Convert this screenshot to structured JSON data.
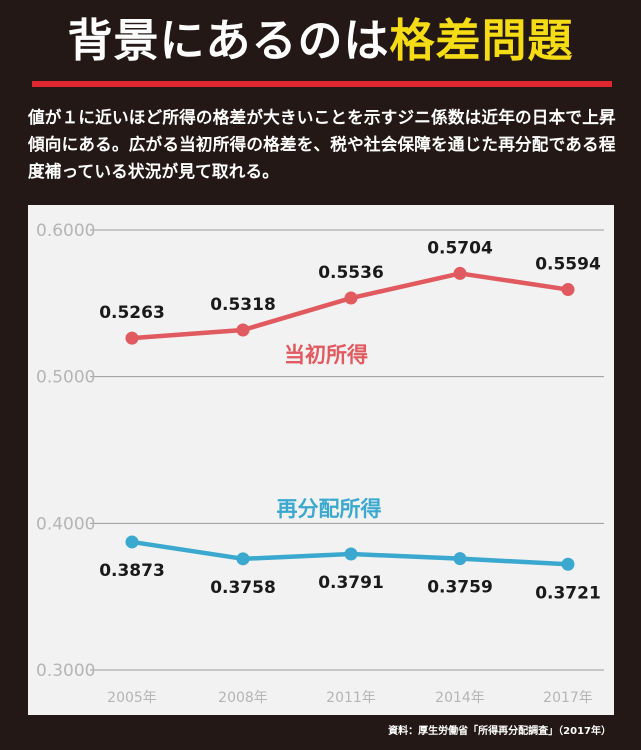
{
  "header": {
    "title_main": "背景にあるのは",
    "title_highlight": "格差問題"
  },
  "description": "値が１に近いほど所得の格差が大きいことを示すジニ係数は近年の日本で上昇傾向にある。広がる当初所得の格差を、税や社会保障を通じた再分配である程度補っている状況が見て取れる。",
  "source": "資料：厚生労働省「所得再分配調査」（2017年）",
  "colors": {
    "background": "#231815",
    "panel": "#f2f2f2",
    "initial_income": "#e05a5f",
    "redistributed_income": "#3ba9cf",
    "title_highlight": "#f5dc14",
    "title_rule": "#e0262e"
  },
  "chart_data": {
    "type": "line",
    "categories": [
      "2005年",
      "2008年",
      "2011年",
      "2014年",
      "2017年"
    ],
    "series": [
      {
        "name": "当初所得",
        "values": [
          0.5263,
          0.5318,
          0.5536,
          0.5704,
          0.5594
        ],
        "labels": [
          "0.5263",
          "0.5318",
          "0.5536",
          "0.5704",
          "0.5594"
        ]
      },
      {
        "name": "再分配所得",
        "values": [
          0.3873,
          0.3758,
          0.3791,
          0.3759,
          0.3721
        ],
        "labels": [
          "0.3873",
          "0.3758",
          "0.3791",
          "0.3759",
          "0.3721"
        ]
      }
    ],
    "yticks": [
      0.3,
      0.4,
      0.5,
      0.6
    ],
    "ytick_labels": [
      "0.3000",
      "0.4000",
      "0.5000",
      "0.6000"
    ],
    "ylim": [
      0.3,
      0.6
    ],
    "grid": true,
    "xlabel": "",
    "ylabel": ""
  }
}
